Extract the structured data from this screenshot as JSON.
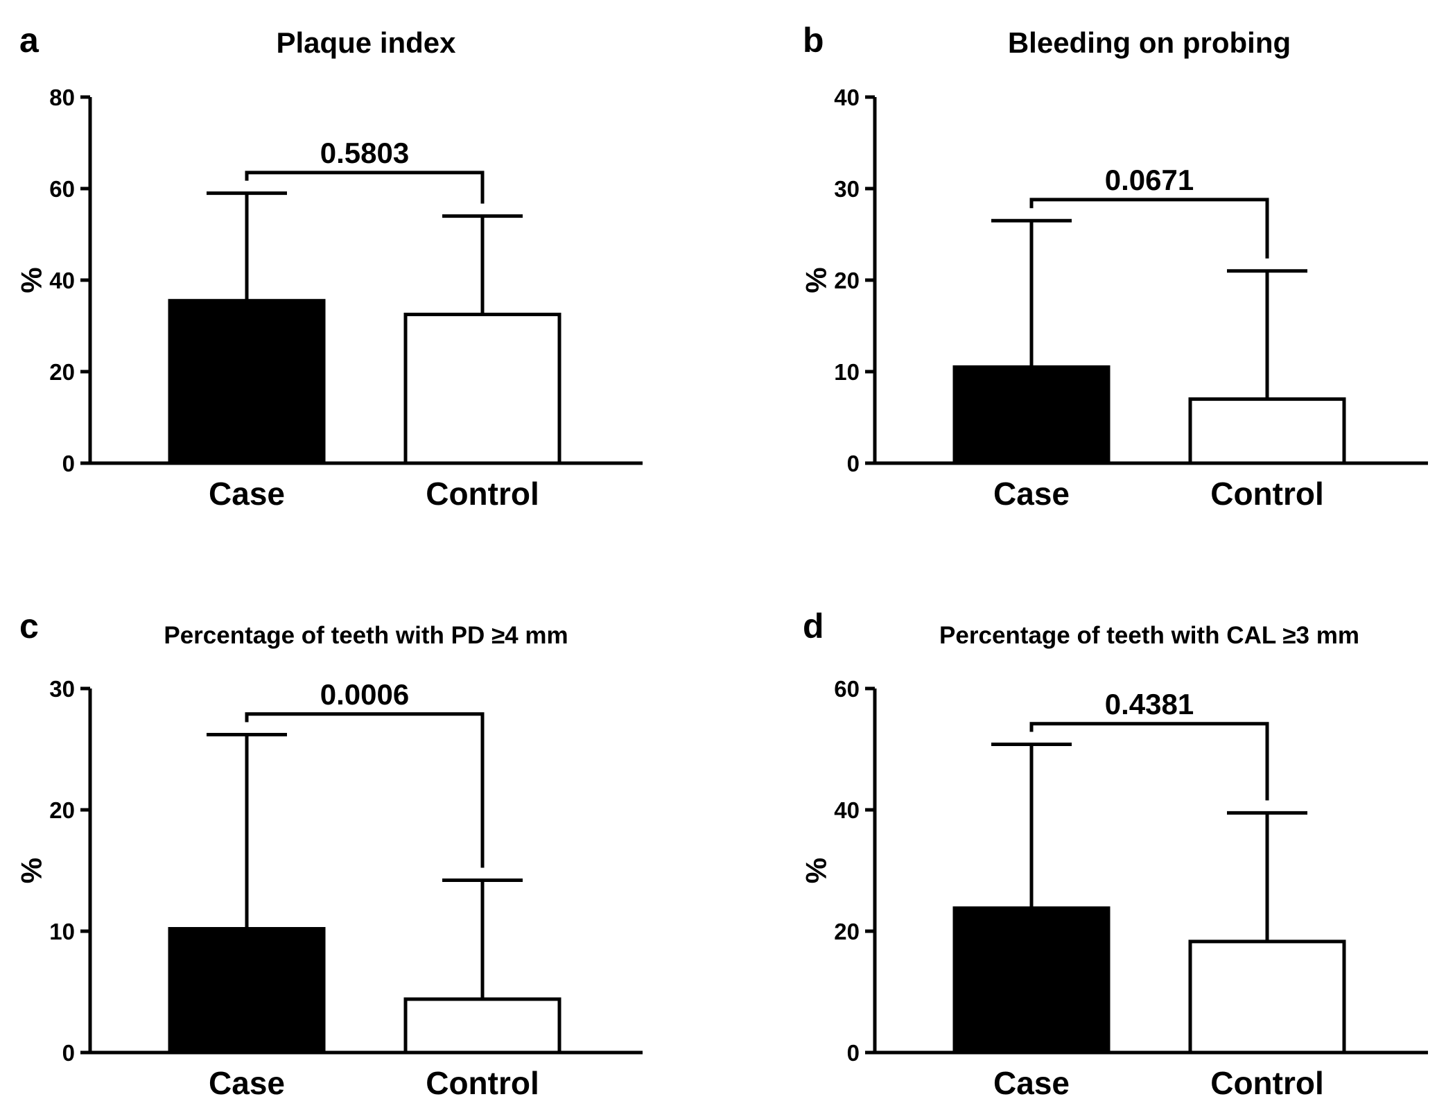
{
  "chart_data": [
    {
      "type": "bar",
      "panel_letter": "a",
      "title": "Plaque index",
      "ylabel": "%",
      "xlabel": "",
      "ylim": [
        0,
        80
      ],
      "yticks": [
        0,
        20,
        40,
        60,
        80
      ],
      "categories": [
        "Case",
        "Control"
      ],
      "values": [
        35.5,
        32.5
      ],
      "error_upper": [
        59,
        54
      ],
      "p_value": "0.5803",
      "bracket_level": 63.5,
      "bar_fill": [
        "#000000",
        "#ffffff"
      ]
    },
    {
      "type": "bar",
      "panel_letter": "b",
      "title": "Bleeding on probing",
      "ylabel": "%",
      "xlabel": "",
      "ylim": [
        0,
        40
      ],
      "yticks": [
        0,
        10,
        20,
        30,
        40
      ],
      "categories": [
        "Case",
        "Control"
      ],
      "values": [
        10.5,
        7
      ],
      "error_upper": [
        26.5,
        21
      ],
      "p_value": "0.0671",
      "bracket_level": 28.8,
      "bar_fill": [
        "#000000",
        "#ffffff"
      ]
    },
    {
      "type": "bar",
      "panel_letter": "c",
      "title": "Percentage of teeth with PD ≥4 mm",
      "ylabel": "%",
      "xlabel": "",
      "ylim": [
        0,
        30
      ],
      "yticks": [
        0,
        10,
        20,
        30
      ],
      "categories": [
        "Case",
        "Control"
      ],
      "values": [
        10.2,
        4.4
      ],
      "error_upper": [
        26.2,
        14.2
      ],
      "p_value": "0.0006",
      "bracket_level": 27.9,
      "bar_fill": [
        "#000000",
        "#ffffff"
      ]
    },
    {
      "type": "bar",
      "panel_letter": "d",
      "title": "Percentage of teeth with CAL ≥3 mm",
      "ylabel": "%",
      "xlabel": "",
      "ylim": [
        0,
        60
      ],
      "yticks": [
        0,
        20,
        40,
        60
      ],
      "categories": [
        "Case",
        "Control"
      ],
      "values": [
        23.8,
        18.3
      ],
      "error_upper": [
        50.8,
        39.5
      ],
      "p_value": "0.4381",
      "bracket_level": 54.2,
      "bar_fill": [
        "#000000",
        "#ffffff"
      ]
    }
  ]
}
